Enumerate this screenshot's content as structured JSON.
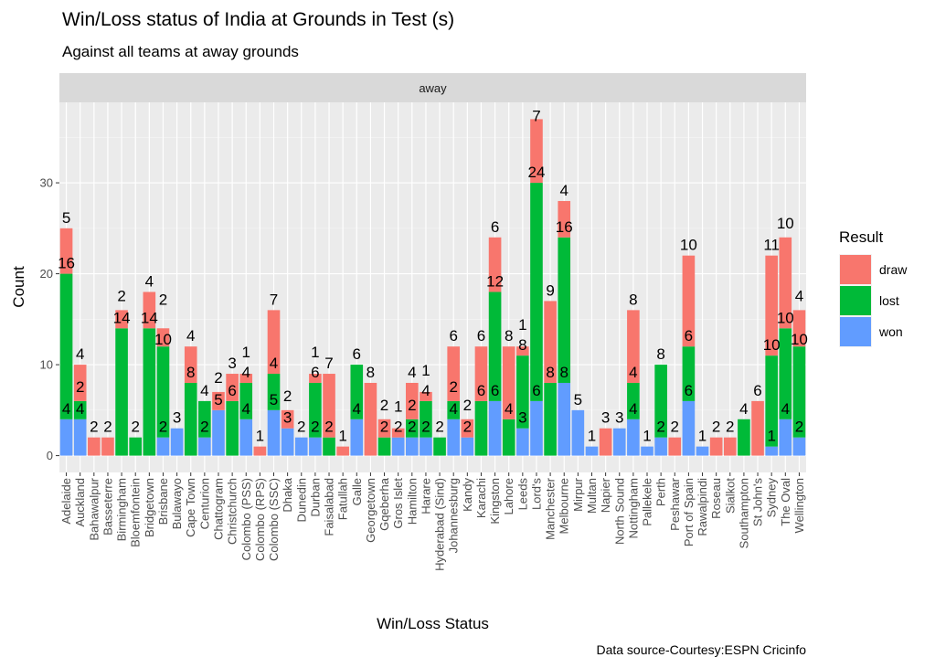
{
  "chart_data": {
    "type": "bar",
    "stacked": true,
    "title": "Win/Loss status of India at Grounds in Test (s)",
    "subtitle": "Against all  teams at away grounds",
    "facet_label": "away",
    "xlabel": "Win/Loss Status",
    "ylabel": "Count",
    "caption": "Data source-Courtesy:ESPN Cricinfo",
    "ylim": [
      -1.85,
      38.85
    ],
    "yticks": [
      0,
      10,
      20,
      30
    ],
    "grid": true,
    "legend": {
      "title": "Result",
      "placement": "right",
      "entries": [
        "draw",
        "lost",
        "won"
      ]
    },
    "colors": {
      "draw": "#F8766D",
      "lost": "#00BA38",
      "won": "#619CFF"
    },
    "categories": [
      "Adelaide",
      "Auckland",
      "Bahawalpur",
      "Basseterre",
      "Birmingham",
      "Bloemfontein",
      "Bridgetown",
      "Brisbane",
      "Bulawayo",
      "Cape Town",
      "Centurion",
      "Chattogram",
      "Christchurch",
      "Colombo (PSS)",
      "Colombo (RPS)",
      "Colombo (SSC)",
      "Dhaka",
      "Dunedin",
      "Durban",
      "Faisalabad",
      "Fatullah",
      "Galle",
      "Georgetown",
      "Gqeberha",
      "Gros Islet",
      "Hamilton",
      "Harare",
      "Hyderabad (Sind)",
      "Johannesburg",
      "Kandy",
      "Karachi",
      "Kingston",
      "Lahore",
      "Leeds",
      "Lord's",
      "Manchester",
      "Melbourne",
      "Mirpur",
      "Multan",
      "Napier",
      "North Sound",
      "Nottingham",
      "Pallekele",
      "Perth",
      "Peshawar",
      "Port of Spain",
      "Rawalpindi",
      "Roseau",
      "Sialkot",
      "Southampton",
      "St John's",
      "Sydney",
      "The Oval",
      "Wellington"
    ],
    "series": [
      {
        "name": "won",
        "values": [
          4,
          4,
          0,
          0,
          0,
          0,
          0,
          2,
          3,
          0,
          2,
          5,
          0,
          4,
          0,
          5,
          3,
          2,
          2,
          0,
          0,
          4,
          0,
          0,
          2,
          2,
          2,
          0,
          4,
          2,
          0,
          6,
          0,
          3,
          6,
          0,
          8,
          5,
          1,
          0,
          3,
          4,
          1,
          2,
          0,
          6,
          1,
          0,
          0,
          0,
          0,
          1,
          4,
          2
        ]
      },
      {
        "name": "lost",
        "values": [
          16,
          2,
          0,
          0,
          14,
          2,
          14,
          10,
          0,
          8,
          4,
          0,
          6,
          4,
          0,
          4,
          0,
          0,
          6,
          2,
          0,
          6,
          0,
          2,
          0,
          2,
          4,
          2,
          2,
          0,
          6,
          12,
          4,
          8,
          24,
          8,
          16,
          0,
          0,
          0,
          0,
          4,
          0,
          8,
          0,
          6,
          0,
          0,
          0,
          4,
          0,
          10,
          10,
          10
        ]
      },
      {
        "name": "draw",
        "values": [
          5,
          4,
          2,
          2,
          2,
          0,
          4,
          2,
          0,
          4,
          0,
          2,
          3,
          1,
          1,
          7,
          2,
          0,
          1,
          7,
          1,
          0,
          8,
          2,
          1,
          4,
          1,
          0,
          6,
          2,
          6,
          6,
          8,
          1,
          7,
          9,
          4,
          0,
          0,
          3,
          0,
          8,
          0,
          0,
          2,
          10,
          0,
          2,
          2,
          0,
          6,
          11,
          10,
          4
        ]
      }
    ]
  }
}
